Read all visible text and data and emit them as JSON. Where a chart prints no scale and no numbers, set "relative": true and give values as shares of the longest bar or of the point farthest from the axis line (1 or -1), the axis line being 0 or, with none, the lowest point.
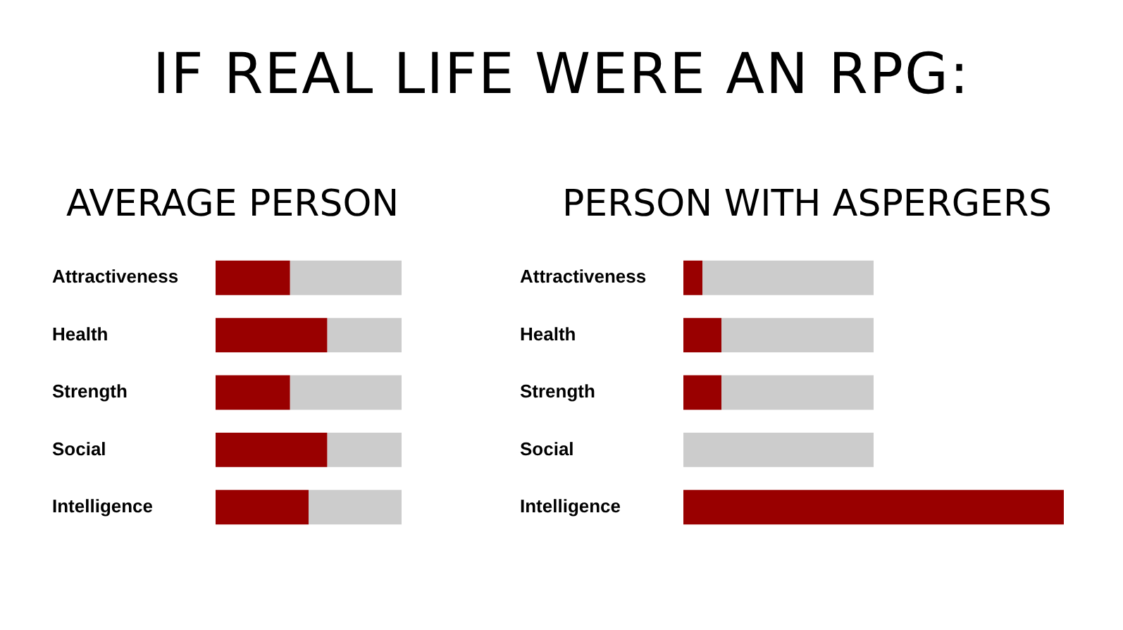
{
  "chart_data": [
    {
      "type": "bar",
      "title": "IF REAL LIFE WERE AN RPG:",
      "subtitle": "AVERAGE PERSON",
      "orientation": "horizontal",
      "stacked": true,
      "relative": true,
      "categories": [
        "Attractiveness",
        "Health",
        "Strength",
        "Social",
        "Intelligence"
      ],
      "series": [
        {
          "color": "#990000",
          "values": [
            0.4,
            0.6,
            0.4,
            0.6,
            0.5
          ]
        },
        {
          "color": "#cccccc",
          "values": [
            0.6,
            0.4,
            0.6,
            0.4,
            0.5
          ]
        }
      ]
    },
    {
      "type": "bar",
      "title": "PERSON WITH ASPERGERS",
      "orientation": "horizontal",
      "stacked": true,
      "relative": true,
      "categories": [
        "Attractiveness",
        "Health",
        "Strength",
        "Social",
        "Intelligence"
      ],
      "series": [
        {
          "color": "#990000",
          "values": [
            0.05,
            0.1,
            0.1,
            0,
            1
          ]
        },
        {
          "color": "#cccccc",
          "values": [
            0.45,
            0.4,
            0.4,
            0.5,
            0
          ]
        }
      ]
    }
  ]
}
